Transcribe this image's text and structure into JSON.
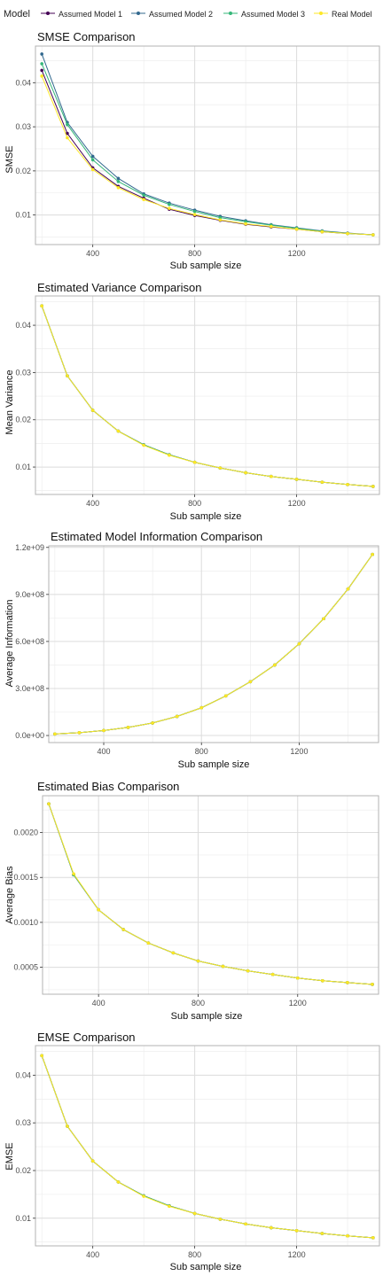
{
  "legend": {
    "title": "Model",
    "entries": [
      {
        "name": "Assumed Model 1",
        "color": "#440154"
      },
      {
        "name": "Assumed Model 2",
        "color": "#31688e"
      },
      {
        "name": "Assumed Model 3",
        "color": "#35b779"
      },
      {
        "name": "Real Model",
        "color": "#fde725"
      }
    ],
    "placement": "top"
  },
  "chart_data": [
    {
      "type": "line",
      "title": "SMSE Comparison",
      "xlabel": "Sub sample size",
      "ylabel": "SMSE",
      "x": [
        200,
        300,
        400,
        500,
        600,
        700,
        800,
        900,
        1000,
        1100,
        1200,
        1300,
        1400,
        1500
      ],
      "xlim": [
        175,
        1525
      ],
      "xticks": [
        400,
        800,
        1200
      ],
      "xtick_labels": [
        "400",
        "800",
        "1200"
      ],
      "ylim": [
        0.0033,
        0.0483
      ],
      "yticks": [
        0.01,
        0.02,
        0.03,
        0.04
      ],
      "ytick_labels": [
        "0.01",
        "0.02",
        "0.03",
        "0.04"
      ],
      "grid": true,
      "series": [
        {
          "name": "Assumed Model 1",
          "values": [
            0.0428,
            0.0285,
            0.0207,
            0.0165,
            0.0138,
            0.0113,
            0.0099,
            0.0088,
            0.0079,
            0.0073,
            0.0068,
            0.0062,
            0.0058,
            0.0055
          ]
        },
        {
          "name": "Assumed Model 2",
          "values": [
            0.0465,
            0.031,
            0.0233,
            0.0183,
            0.0148,
            0.0127,
            0.0111,
            0.0097,
            0.0087,
            0.0078,
            0.0071,
            0.0064,
            0.0059,
            0.0055
          ]
        },
        {
          "name": "Assumed Model 3",
          "values": [
            0.0443,
            0.0305,
            0.0225,
            0.0176,
            0.0145,
            0.0124,
            0.0108,
            0.0094,
            0.0085,
            0.0077,
            0.007,
            0.0063,
            0.0058,
            0.0055
          ]
        },
        {
          "name": "Real Model",
          "values": [
            0.0415,
            0.0275,
            0.0203,
            0.0162,
            0.0135,
            0.0115,
            0.0101,
            0.0089,
            0.008,
            0.0074,
            0.0068,
            0.0062,
            0.0058,
            0.0055
          ]
        }
      ]
    },
    {
      "type": "line",
      "title": "Estimated Variance Comparison",
      "xlabel": "Sub sample size",
      "ylabel": "Mean Variance",
      "x": [
        200,
        300,
        400,
        500,
        600,
        700,
        800,
        900,
        1000,
        1100,
        1200,
        1300,
        1400,
        1500
      ],
      "xlim": [
        175,
        1525
      ],
      "xticks": [
        400,
        800,
        1200
      ],
      "xtick_labels": [
        "400",
        "800",
        "1200"
      ],
      "ylim": [
        0.0042,
        0.0462
      ],
      "yticks": [
        0.01,
        0.02,
        0.03,
        0.04
      ],
      "ytick_labels": [
        "0.01",
        "0.02",
        "0.03",
        "0.04"
      ],
      "grid": true,
      "series": [
        {
          "name": "Assumed Model 1",
          "values": [
            0.0441,
            0.0293,
            0.022,
            0.0176,
            0.0147,
            0.0126,
            0.011,
            0.0098,
            0.0088,
            0.008,
            0.0074,
            0.0068,
            0.0063,
            0.0059
          ]
        },
        {
          "name": "Assumed Model 2",
          "values": [
            0.0441,
            0.0293,
            0.022,
            0.0176,
            0.0147,
            0.0126,
            0.011,
            0.0098,
            0.0088,
            0.008,
            0.0074,
            0.0068,
            0.0063,
            0.0059
          ]
        },
        {
          "name": "Assumed Model 3",
          "values": [
            0.0441,
            0.0293,
            0.022,
            0.0176,
            0.0147,
            0.0126,
            0.011,
            0.0098,
            0.0088,
            0.008,
            0.0074,
            0.0068,
            0.0063,
            0.0059
          ]
        },
        {
          "name": "Real Model",
          "values": [
            0.0441,
            0.0293,
            0.022,
            0.0176,
            0.0146,
            0.0125,
            0.011,
            0.0098,
            0.0088,
            0.008,
            0.0074,
            0.0068,
            0.0063,
            0.0059
          ]
        }
      ]
    },
    {
      "type": "line",
      "title": "Estimated Model Information Comparison",
      "xlabel": "Sub sample size",
      "ylabel": "Average Information",
      "x": [
        200,
        300,
        400,
        500,
        600,
        700,
        800,
        900,
        1000,
        1100,
        1200,
        1300,
        1400,
        1500
      ],
      "xlim": [
        175,
        1525
      ],
      "xticks": [
        400,
        800,
        1200
      ],
      "xtick_labels": [
        "400",
        "800",
        "1200"
      ],
      "ylim": [
        -45000000,
        1210000000
      ],
      "yticks": [
        0,
        300000000,
        600000000,
        900000000,
        1200000000
      ],
      "ytick_labels": [
        "0.0e+00",
        "3.0e+08",
        "6.0e+08",
        "9.0e+08",
        "1.2e+09"
      ],
      "grid": true,
      "series": [
        {
          "name": "Assumed Model 1",
          "values": [
            10000000,
            18000000,
            32000000,
            52000000,
            80000000,
            122000000,
            177000000,
            253000000,
            343000000,
            450000000,
            585000000,
            745000000,
            935000000,
            1155000000
          ]
        },
        {
          "name": "Assumed Model 2",
          "values": [
            10000000,
            18000000,
            32000000,
            52000000,
            80000000,
            122000000,
            177000000,
            253000000,
            343000000,
            450000000,
            585000000,
            745000000,
            935000000,
            1155000000
          ]
        },
        {
          "name": "Assumed Model 3",
          "values": [
            10000000,
            18000000,
            32000000,
            52000000,
            80000000,
            122000000,
            177000000,
            253000000,
            343000000,
            450000000,
            585000000,
            745000000,
            935000000,
            1155000000
          ]
        },
        {
          "name": "Real Model",
          "values": [
            10000000,
            18000000,
            32000000,
            52000000,
            80000000,
            122000000,
            177000000,
            253000000,
            343000000,
            450000000,
            585000000,
            745000000,
            935000000,
            1155000000
          ]
        }
      ]
    },
    {
      "type": "line",
      "title": "Estimated Bias Comparison",
      "xlabel": "Sub sample size",
      "ylabel": "Average Bias",
      "x": [
        200,
        300,
        400,
        500,
        600,
        700,
        800,
        900,
        1000,
        1100,
        1200,
        1300,
        1400,
        1500
      ],
      "xlim": [
        175,
        1525
      ],
      "xticks": [
        400,
        800,
        1200
      ],
      "xtick_labels": [
        "400",
        "800",
        "1200"
      ],
      "ylim": [
        0.0002,
        0.00241
      ],
      "yticks": [
        0.0005,
        0.001,
        0.0015,
        0.002
      ],
      "ytick_labels": [
        "0.0005",
        "0.0010",
        "0.0015",
        "0.0020"
      ],
      "grid": true,
      "series": [
        {
          "name": "Assumed Model 1",
          "values": [
            0.00232,
            0.00153,
            0.00114,
            0.00092,
            0.00077,
            0.00066,
            0.00057,
            0.00051,
            0.00046,
            0.00042,
            0.00038,
            0.00035,
            0.00033,
            0.00031
          ]
        },
        {
          "name": "Assumed Model 2",
          "values": [
            0.00232,
            0.00153,
            0.00114,
            0.00092,
            0.00077,
            0.00066,
            0.00057,
            0.00051,
            0.00046,
            0.00042,
            0.00038,
            0.00035,
            0.00033,
            0.00031
          ]
        },
        {
          "name": "Assumed Model 3",
          "values": [
            0.00232,
            0.00153,
            0.00114,
            0.00092,
            0.00077,
            0.00066,
            0.00057,
            0.00051,
            0.00046,
            0.00042,
            0.00038,
            0.00035,
            0.00033,
            0.00031
          ]
        },
        {
          "name": "Real Model",
          "values": [
            0.00232,
            0.00154,
            0.00114,
            0.00092,
            0.00077,
            0.00066,
            0.00057,
            0.00051,
            0.00046,
            0.00042,
            0.00038,
            0.00035,
            0.00033,
            0.00031
          ]
        }
      ]
    },
    {
      "type": "line",
      "title": "EMSE Comparison",
      "xlabel": "Sub sample size",
      "ylabel": "EMSE",
      "x": [
        200,
        300,
        400,
        500,
        600,
        700,
        800,
        900,
        1000,
        1100,
        1200,
        1300,
        1400,
        1500
      ],
      "xlim": [
        175,
        1525
      ],
      "xticks": [
        400,
        800,
        1200
      ],
      "xtick_labels": [
        "400",
        "800",
        "1200"
      ],
      "ylim": [
        0.0042,
        0.0462
      ],
      "yticks": [
        0.01,
        0.02,
        0.03,
        0.04
      ],
      "ytick_labels": [
        "0.01",
        "0.02",
        "0.03",
        "0.04"
      ],
      "grid": true,
      "series": [
        {
          "name": "Assumed Model 1",
          "values": [
            0.0441,
            0.0293,
            0.022,
            0.0176,
            0.0147,
            0.0126,
            0.011,
            0.0098,
            0.0088,
            0.008,
            0.0074,
            0.0068,
            0.0063,
            0.0059
          ]
        },
        {
          "name": "Assumed Model 2",
          "values": [
            0.0441,
            0.0293,
            0.022,
            0.0176,
            0.0147,
            0.0126,
            0.011,
            0.0098,
            0.0088,
            0.008,
            0.0074,
            0.0068,
            0.0063,
            0.0059
          ]
        },
        {
          "name": "Assumed Model 3",
          "values": [
            0.0441,
            0.0293,
            0.022,
            0.0176,
            0.0147,
            0.0126,
            0.011,
            0.0098,
            0.0088,
            0.008,
            0.0074,
            0.0068,
            0.0063,
            0.0059
          ]
        },
        {
          "name": "Real Model",
          "values": [
            0.0441,
            0.0293,
            0.022,
            0.0176,
            0.0146,
            0.0125,
            0.011,
            0.0098,
            0.0088,
            0.008,
            0.0074,
            0.0068,
            0.0063,
            0.0059
          ]
        }
      ]
    }
  ]
}
